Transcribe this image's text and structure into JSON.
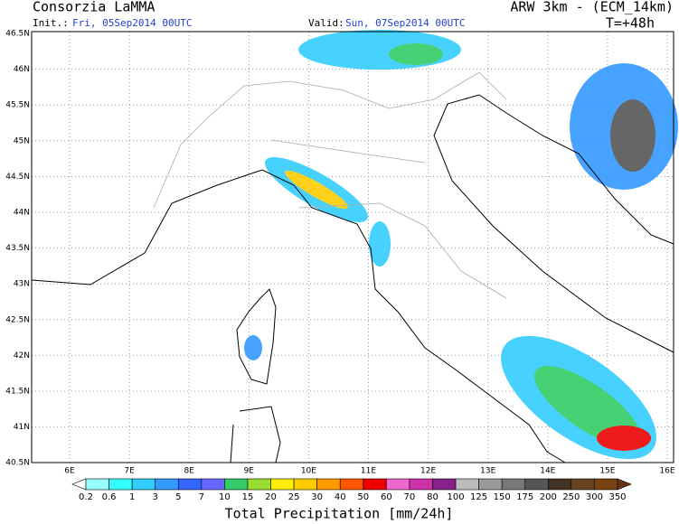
{
  "header": {
    "left_title": "Consorzia LaMMA",
    "init_label": "Init.:",
    "init_value": "Fri, 05Sep2014 00UTC",
    "valid_label": "Valid:",
    "valid_value": "Sun, 07Sep2014 00UTC",
    "model": "ARW 3km - (ECM_14km)",
    "forecast_time": "T=+48h"
  },
  "map": {
    "lat_labels": [
      "46.5N",
      "46N",
      "45.5N",
      "45N",
      "44.5N",
      "44N",
      "43.5N",
      "43N",
      "42.5N",
      "42N",
      "41.5N",
      "41N",
      "40.5N"
    ],
    "lon_labels": [
      "6E",
      "7E",
      "8E",
      "9E",
      "10E",
      "11E",
      "12E",
      "13E",
      "14E",
      "15E",
      "16E"
    ]
  },
  "colorbar": {
    "title": "Total Precipitation [mm/24h]",
    "labels": [
      0.2,
      0.6,
      1,
      3,
      5,
      7,
      10,
      15,
      20,
      25,
      30,
      40,
      50,
      60,
      70,
      80,
      100,
      125,
      150,
      175,
      200,
      250,
      300,
      350
    ],
    "colors": [
      "#ffffff",
      "#99ffff",
      "#33ffff",
      "#33ccff",
      "#3399ff",
      "#3366ff",
      "#6666ff",
      "#33cc66",
      "#99dd33",
      "#ffee00",
      "#ffcc00",
      "#ff9900",
      "#ff5500",
      "#ee0000",
      "#ee66cc",
      "#cc33aa",
      "#882288",
      "#bbbbbb",
      "#999999",
      "#777777",
      "#555555",
      "#443322",
      "#664422",
      "#774411",
      "#663311"
    ]
  }
}
